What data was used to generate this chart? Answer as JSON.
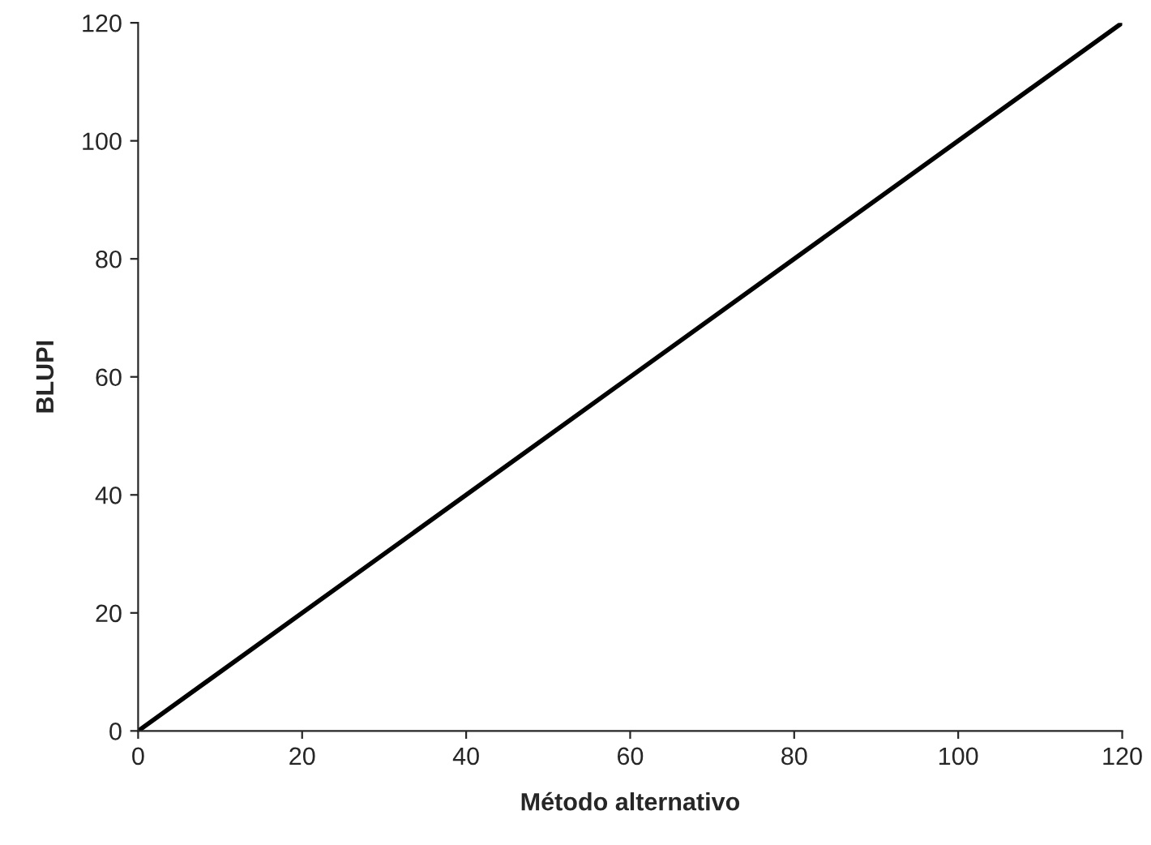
{
  "chart_data": {
    "type": "line",
    "xlabel": "Método alternativo",
    "ylabel": "BLUPI",
    "series": [
      {
        "color": "#000000",
        "x": [
          0,
          120
        ],
        "values": [
          0,
          120
        ]
      }
    ],
    "xlim": [
      0,
      120
    ],
    "ylim": [
      0,
      120
    ],
    "xticks": [
      0,
      20,
      40,
      60,
      80,
      100,
      120
    ],
    "yticks": [
      0,
      20,
      40,
      60,
      80,
      100,
      120
    ],
    "grid": false,
    "legend": false,
    "marker": "none",
    "line_style": "solid"
  }
}
